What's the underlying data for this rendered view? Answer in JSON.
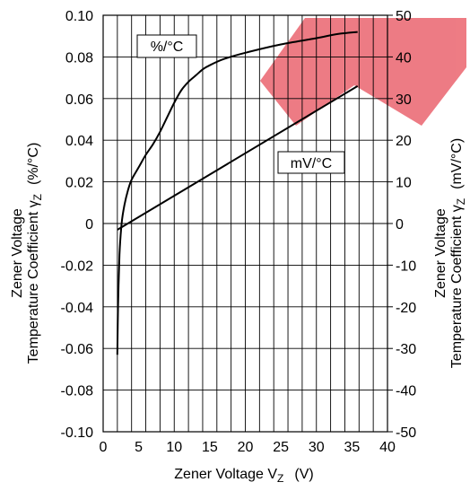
{
  "chart_data": {
    "type": "line",
    "title": "",
    "xlabel": "Zener Voltage Vz (V)",
    "xlabel_parts": {
      "main": "Zener Voltage V",
      "sub": "Z",
      "unit": "(V)"
    },
    "ylabel_left": {
      "line1": "Zener Voltage",
      "line2_main": "Temperature Coefficient  γ",
      "line2_sub": "Z",
      "line2_unit": "(%/°C)"
    },
    "ylabel_right": {
      "line1": "Zener Voltage",
      "line2_main": "Temperature Coefficient  γ",
      "line2_sub": "Z",
      "line2_unit": "(mV/°C)"
    },
    "xlim": [
      0,
      40
    ],
    "ylim_left": [
      -0.1,
      0.1
    ],
    "ylim_right": [
      -50,
      50
    ],
    "x_ticks": [
      "0",
      "5",
      "10",
      "15",
      "20",
      "25",
      "30",
      "35",
      "40"
    ],
    "y_left_ticks": [
      "0.10",
      "0.08",
      "0.06",
      "0.04",
      "0.02",
      "0",
      "-0.02",
      "-0.04",
      "-0.06",
      "-0.08",
      "-0.10"
    ],
    "y_right_ticks": [
      "50",
      "40",
      "30",
      "20",
      "10",
      "0",
      "-10",
      "-20",
      "-30",
      "-40",
      "-50"
    ],
    "grid": "vertical every 2 V; horizontal every 0.02 %/°C",
    "series": [
      {
        "name": "%/°C",
        "axis": "left",
        "x": [
          2.0,
          2.1,
          2.3,
          2.6,
          3.0,
          3.5,
          4.0,
          5.0,
          6.0,
          7.0,
          8.0,
          9.0,
          10.0,
          11.0,
          12.0,
          13.0,
          14.0,
          15.0,
          17.0,
          20.0,
          25.0,
          30.0,
          33.0,
          35.8
        ],
        "y": [
          -0.063,
          -0.04,
          -0.015,
          0.0,
          0.009,
          0.016,
          0.021,
          0.027,
          0.033,
          0.038,
          0.044,
          0.051,
          0.058,
          0.064,
          0.068,
          0.071,
          0.074,
          0.076,
          0.079,
          0.082,
          0.086,
          0.089,
          0.091,
          0.092
        ]
      },
      {
        "name": "mV/°C",
        "axis": "right",
        "x": [
          2.0,
          35.8
        ],
        "y": [
          -1.5,
          33.0
        ]
      }
    ]
  }
}
